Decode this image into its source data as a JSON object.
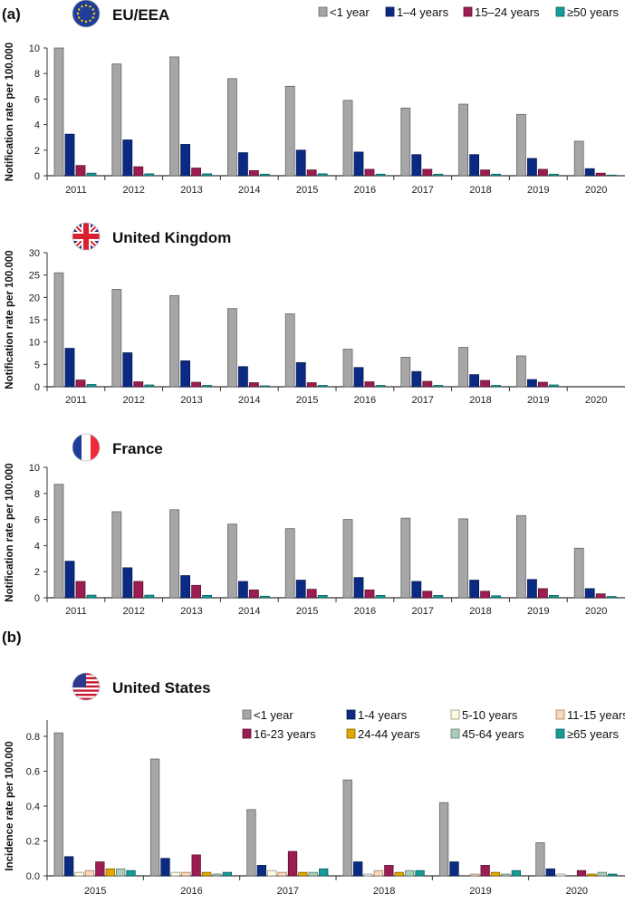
{
  "panel_labels": {
    "a": "(a)",
    "b": "(b)"
  },
  "colors": {
    "lt1": "#a6a6a6",
    "y1_4": "#0b2a83",
    "y15_24": "#9b1d52",
    "y50": "#149c9a",
    "y5_10": "#fdfbe2",
    "y11_15": "#fcd7b6",
    "y24_44": "#e2a700",
    "y45_64": "#a8cdb9",
    "y65": "#169b98"
  },
  "chart_data": [
    {
      "type": "bar",
      "title": "EU/EEA",
      "flag": "eu-flag",
      "ylabel": "Notification rate per 100.000",
      "ylim": [
        0,
        10
      ],
      "yticks": [
        "0",
        "2",
        "4",
        "6",
        "8",
        "10"
      ],
      "legend_position": "top-right",
      "categories": [
        "2011",
        "2012",
        "2013",
        "2014",
        "2015",
        "2016",
        "2017",
        "2018",
        "2019",
        "2020"
      ],
      "series": [
        {
          "name": "<1 year",
          "color_key": "lt1",
          "values": [
            10.0,
            8.75,
            9.3,
            7.6,
            7.0,
            5.9,
            5.3,
            5.6,
            4.8,
            2.7
          ]
        },
        {
          "name": "1–4 years",
          "color_key": "y1_4",
          "values": [
            3.25,
            2.8,
            2.45,
            1.8,
            2.0,
            1.85,
            1.65,
            1.65,
            1.35,
            0.55
          ]
        },
        {
          "name": "15–24 years",
          "color_key": "y15_24",
          "values": [
            0.8,
            0.7,
            0.6,
            0.4,
            0.45,
            0.5,
            0.5,
            0.45,
            0.5,
            0.2
          ]
        },
        {
          "name": "≥50 years",
          "color_key": "y50",
          "values": [
            0.2,
            0.15,
            0.15,
            0.12,
            0.15,
            0.12,
            0.12,
            0.12,
            0.12,
            0.05
          ]
        }
      ]
    },
    {
      "type": "bar",
      "title": "United Kingdom",
      "flag": "uk-flag",
      "ylabel": "Notification rate per 100.000",
      "ylim": [
        0,
        30
      ],
      "yticks": [
        "0",
        "5",
        "10",
        "15",
        "20",
        "25",
        "30"
      ],
      "categories": [
        "2011",
        "2012",
        "2013",
        "2014",
        "2015",
        "2016",
        "2017",
        "2018",
        "2019",
        "2020"
      ],
      "series": [
        {
          "name": "<1 year",
          "color_key": "lt1",
          "values": [
            25.5,
            21.8,
            20.4,
            17.5,
            16.3,
            8.4,
            6.6,
            8.8,
            6.9,
            0
          ]
        },
        {
          "name": "1–4 years",
          "color_key": "y1_4",
          "values": [
            8.6,
            7.6,
            5.8,
            4.5,
            5.4,
            4.3,
            3.4,
            2.7,
            1.6,
            0
          ]
        },
        {
          "name": "15–24 years",
          "color_key": "y15_24",
          "values": [
            1.5,
            1.1,
            1.0,
            0.9,
            0.9,
            1.1,
            1.2,
            1.4,
            1.0,
            0
          ]
        },
        {
          "name": "≥50 years",
          "color_key": "y50",
          "values": [
            0.5,
            0.4,
            0.3,
            0.2,
            0.3,
            0.3,
            0.3,
            0.3,
            0.4,
            0
          ]
        }
      ]
    },
    {
      "type": "bar",
      "title": "France",
      "flag": "france-flag",
      "ylabel": "Notification rate per 100.000",
      "ylim": [
        0,
        10
      ],
      "yticks": [
        "0",
        "2",
        "4",
        "6",
        "8",
        "10"
      ],
      "categories": [
        "2011",
        "2012",
        "2013",
        "2014",
        "2015",
        "2016",
        "2017",
        "2018",
        "2019",
        "2020"
      ],
      "series": [
        {
          "name": "<1 year",
          "color_key": "lt1",
          "values": [
            8.7,
            6.6,
            6.75,
            5.65,
            5.3,
            6.0,
            6.1,
            6.05,
            6.3,
            3.8
          ]
        },
        {
          "name": "1–4 years",
          "color_key": "y1_4",
          "values": [
            2.8,
            2.3,
            1.7,
            1.25,
            1.35,
            1.55,
            1.25,
            1.35,
            1.4,
            0.7
          ]
        },
        {
          "name": "15–24 years",
          "color_key": "y15_24",
          "values": [
            1.25,
            1.25,
            0.95,
            0.6,
            0.65,
            0.6,
            0.5,
            0.5,
            0.7,
            0.3
          ]
        },
        {
          "name": "≥50 years",
          "color_key": "y50",
          "values": [
            0.2,
            0.2,
            0.18,
            0.12,
            0.18,
            0.18,
            0.18,
            0.15,
            0.18,
            0.1
          ]
        }
      ]
    },
    {
      "type": "bar",
      "title": "United States",
      "flag": "us-flag",
      "ylabel": "Incidence rate per 100.000",
      "ylim": [
        0,
        0.8
      ],
      "yticks": [
        "0.0",
        "0.2",
        "0.4",
        "0.6",
        "0.8"
      ],
      "legend_position": "top-right",
      "categories": [
        "2015",
        "2016",
        "2017",
        "2018",
        "2019",
        "2020"
      ],
      "series": [
        {
          "name": "<1 year",
          "color_key": "lt1",
          "values": [
            0.82,
            0.67,
            0.38,
            0.55,
            0.42,
            0.19
          ]
        },
        {
          "name": "1-4 years",
          "color_key": "y1_4",
          "values": [
            0.11,
            0.1,
            0.06,
            0.08,
            0.08,
            0.04
          ]
        },
        {
          "name": "5-10 years",
          "color_key": "y5_10",
          "values": [
            0.02,
            0.02,
            0.03,
            0.01,
            0.0,
            0.01
          ]
        },
        {
          "name": "11-15 years",
          "color_key": "y11_15",
          "values": [
            0.03,
            0.02,
            0.02,
            0.03,
            0.01,
            0.0
          ]
        },
        {
          "name": "16-23 years",
          "color_key": "y15_24",
          "values": [
            0.08,
            0.12,
            0.14,
            0.06,
            0.06,
            0.03
          ]
        },
        {
          "name": "24-44 years",
          "color_key": "y24_44",
          "values": [
            0.04,
            0.02,
            0.02,
            0.02,
            0.02,
            0.01
          ]
        },
        {
          "name": "45-64 years",
          "color_key": "y45_64",
          "values": [
            0.04,
            0.01,
            0.02,
            0.03,
            0.01,
            0.02
          ]
        },
        {
          "name": "≥65 years",
          "color_key": "y65",
          "values": [
            0.03,
            0.02,
            0.04,
            0.03,
            0.03,
            0.01
          ]
        }
      ]
    }
  ]
}
